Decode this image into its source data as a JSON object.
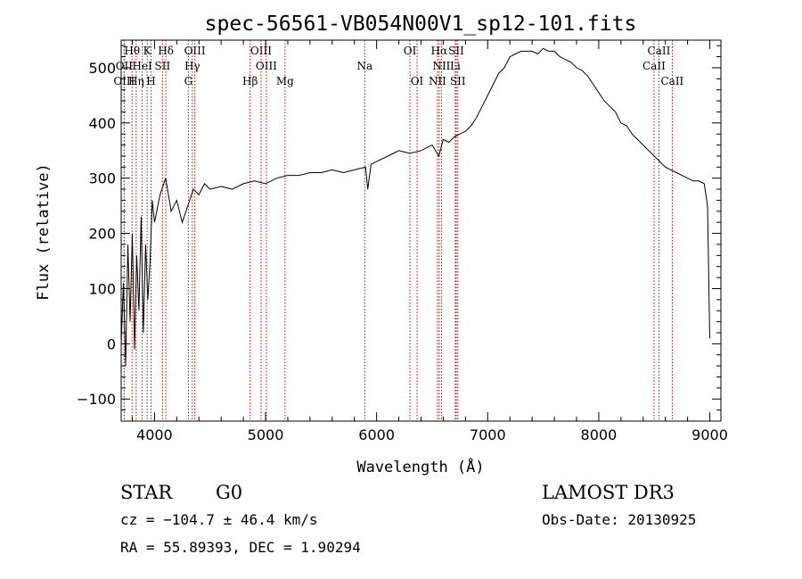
{
  "chart_data": {
    "type": "line",
    "title": "spec-56561-VB054N00V1_sp12-101.fits",
    "xlabel": "Wavelength (Å)",
    "ylabel": "Flux (relative)",
    "xlim": [
      3700,
      9100
    ],
    "ylim": [
      -140,
      550
    ],
    "xticks": [
      4000,
      5000,
      6000,
      7000,
      8000,
      9000
    ],
    "yticks": [
      -100,
      0,
      100,
      200,
      300,
      400,
      500
    ],
    "grid": false,
    "line_color": "#000000",
    "marker_color": "#cc0000",
    "series": [
      {
        "name": "flux",
        "x": [
          3700,
          3720,
          3740,
          3760,
          3780,
          3800,
          3820,
          3840,
          3860,
          3880,
          3900,
          3920,
          3940,
          3960,
          3980,
          4000,
          4050,
          4100,
          4150,
          4200,
          4250,
          4300,
          4350,
          4400,
          4450,
          4500,
          4600,
          4700,
          4800,
          4900,
          5000,
          5100,
          5200,
          5300,
          5400,
          5500,
          5600,
          5700,
          5800,
          5900,
          5920,
          5950,
          6000,
          6100,
          6200,
          6300,
          6400,
          6500,
          6560,
          6600,
          6650,
          6700,
          6750,
          6800,
          6850,
          6900,
          6950,
          7000,
          7050,
          7100,
          7150,
          7200,
          7250,
          7300,
          7350,
          7400,
          7450,
          7500,
          7550,
          7600,
          7650,
          7700,
          7750,
          7800,
          7850,
          7900,
          7950,
          8000,
          8050,
          8100,
          8150,
          8200,
          8250,
          8300,
          8350,
          8400,
          8450,
          8500,
          8550,
          8600,
          8650,
          8700,
          8750,
          8800,
          8850,
          8900,
          8950,
          8980,
          9000
        ],
        "y": [
          0,
          110,
          -40,
          180,
          40,
          200,
          -10,
          160,
          60,
          230,
          20,
          180,
          80,
          150,
          260,
          220,
          270,
          300,
          240,
          260,
          220,
          250,
          280,
          270,
          290,
          280,
          285,
          280,
          290,
          295,
          290,
          300,
          305,
          305,
          310,
          310,
          315,
          310,
          315,
          320,
          280,
          325,
          330,
          340,
          350,
          345,
          350,
          360,
          340,
          370,
          365,
          375,
          380,
          385,
          395,
          410,
          430,
          450,
          470,
          490,
          500,
          520,
          525,
          530,
          530,
          530,
          525,
          535,
          530,
          530,
          520,
          515,
          510,
          500,
          495,
          485,
          470,
          455,
          440,
          430,
          420,
          400,
          395,
          380,
          370,
          360,
          350,
          340,
          330,
          320,
          315,
          310,
          305,
          300,
          295,
          295,
          290,
          250,
          10
        ]
      }
    ],
    "lines": [
      {
        "label": "Hθ",
        "x": 3798,
        "row": 1
      },
      {
        "label": "K",
        "x": 3934,
        "row": 1
      },
      {
        "label": "Hδ",
        "x": 4102,
        "row": 1
      },
      {
        "label": "OIII",
        "x": 4363,
        "row": 1
      },
      {
        "label": "OIII",
        "x": 4959,
        "row": 1
      },
      {
        "label": "OI",
        "x": 6300,
        "row": 1
      },
      {
        "label": "Hα",
        "x": 6563,
        "row": 1
      },
      {
        "label": "SII",
        "x": 6717,
        "row": 1
      },
      {
        "label": "CaII",
        "x": 8542,
        "row": 1
      },
      {
        "label": "OII",
        "x": 3727,
        "row": 2
      },
      {
        "label": "HeI",
        "x": 3889,
        "row": 2
      },
      {
        "label": "SII",
        "x": 4072,
        "row": 2
      },
      {
        "label": "Hγ",
        "x": 4340,
        "row": 2
      },
      {
        "label": "OIII",
        "x": 5007,
        "row": 2
      },
      {
        "label": "Na",
        "x": 5893,
        "row": 2
      },
      {
        "label": "NII",
        "x": 6584,
        "row": 2
      },
      {
        "label": "Li",
        "x": 6708,
        "row": 2
      },
      {
        "label": "CaII",
        "x": 8498,
        "row": 2
      },
      {
        "label": "OIII",
        "x": 3727,
        "row": 3
      },
      {
        "label": "Hη",
        "x": 3835,
        "row": 3
      },
      {
        "label": "H",
        "x": 3969,
        "row": 3
      },
      {
        "label": "G",
        "x": 4305,
        "row": 3
      },
      {
        "label": "Hβ",
        "x": 4861,
        "row": 3
      },
      {
        "label": "Mg",
        "x": 5175,
        "row": 3
      },
      {
        "label": "OI",
        "x": 6364,
        "row": 3
      },
      {
        "label": "NII",
        "x": 6548,
        "row": 3
      },
      {
        "label": "SII",
        "x": 6731,
        "row": 3
      },
      {
        "label": "CaII",
        "x": 8662,
        "row": 3
      }
    ]
  },
  "info": {
    "object_class": "STAR",
    "subclass": "G0",
    "survey": "LAMOST DR3",
    "cz": "cz = −104.7 ± 46.4 km/s",
    "obs_date": "Obs-Date: 20130925",
    "coords": "RA =  55.89393, DEC =   1.90294"
  }
}
